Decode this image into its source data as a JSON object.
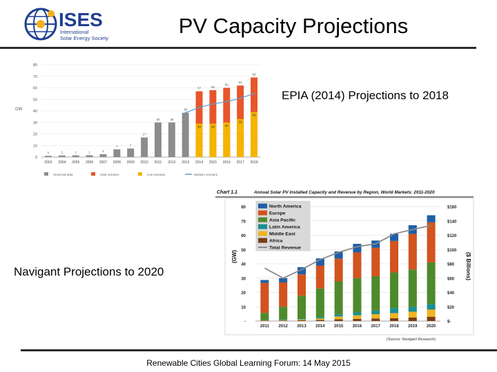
{
  "header": {
    "title": "PV Capacity Projections",
    "logo": {
      "acronym": "ISES",
      "name_lines": [
        "International",
        "Solar Energy Society"
      ]
    }
  },
  "labels": {
    "epia": "EPIA (2014) Projections to 2018",
    "navigant": "Navigant Projections to 2020"
  },
  "footer": "Renewable Cities Global Learning Forum:  14 May 2015",
  "colors": {
    "historical": "#8c8c8c",
    "high": "#e8552a",
    "low": "#f4b400",
    "medium": "#5b9bd5",
    "north_america": "#1f5fa8",
    "europe": "#d2541f",
    "asia_pacific": "#4e8a2c",
    "latin_america": "#1a8f8f",
    "middle_east": "#f0b323",
    "africa": "#7a3d14",
    "revenue": "#8a8a8a"
  },
  "chart_data": [
    {
      "type": "bar",
      "title": "",
      "ylabel": "GW",
      "ylim": [
        0,
        80
      ],
      "yticks": [
        0,
        10,
        20,
        30,
        40,
        50,
        60,
        70,
        80
      ],
      "categories": [
        "2003",
        "2004",
        "2005",
        "2006",
        "2007",
        "2008",
        "2009",
        "2010",
        "2011",
        "2012",
        "2013",
        "2014",
        "2015",
        "2016",
        "2017",
        "2018"
      ],
      "series": [
        {
          "name": "Historical data",
          "values": [
            1.1,
            1.4,
            1.5,
            1.6,
            2.5,
            6.7,
            7.4,
            17,
            30,
            30,
            38.4,
            null,
            null,
            null,
            null,
            null
          ]
        },
        {
          "name": "High scenario",
          "values": [
            null,
            null,
            null,
            null,
            null,
            null,
            null,
            null,
            null,
            null,
            null,
            57,
            58,
            60,
            62,
            69
          ]
        },
        {
          "name": "Low scenario",
          "values": [
            null,
            null,
            null,
            null,
            null,
            null,
            null,
            null,
            null,
            null,
            null,
            29,
            29,
            30,
            33,
            39
          ]
        },
        {
          "name": "Medium scenario",
          "values": [
            null,
            null,
            null,
            null,
            null,
            null,
            null,
            null,
            null,
            null,
            38.4,
            43,
            46,
            48,
            51,
            55
          ]
        }
      ],
      "data_labels": [
        "1",
        "1",
        "1",
        "1",
        "2",
        "7",
        "7",
        "17",
        "30",
        "30",
        "38",
        "57",
        "58",
        "60",
        "62",
        "69"
      ],
      "low_labels": [
        "29",
        "29",
        "30",
        "33",
        "39"
      ],
      "legend": [
        "Historical data",
        "High scenario",
        "Low scenario",
        "Medium scenario"
      ]
    },
    {
      "type": "bar",
      "title": "Annual Solar PV Installed Capacity and Revenue by Region, World Markets: 2011-2020",
      "chart_label": "Chart 1.1",
      "ylabel": "(GW)",
      "y2label": "($ Billions)",
      "ylim": [
        0,
        80
      ],
      "yticks": [
        "-",
        "10",
        "20",
        "30",
        "40",
        "50",
        "60",
        "70",
        "80"
      ],
      "y2ticks": [
        "$-",
        "$20",
        "$40",
        "$60",
        "$80",
        "$100",
        "$120",
        "$140",
        "$160"
      ],
      "categories": [
        "2011",
        "2012",
        "2013",
        "2014",
        "2015",
        "2016",
        "2017",
        "2018",
        "2019",
        "2020"
      ],
      "series": [
        {
          "name": "Africa",
          "values": [
            0.3,
            0.3,
            0.5,
            0.8,
            1.2,
            1.5,
            1.8,
            2,
            2.5,
            3
          ]
        },
        {
          "name": "Middle East",
          "values": [
            0.2,
            0.3,
            0.6,
            1,
            2,
            2.5,
            3,
            3.5,
            4,
            5
          ]
        },
        {
          "name": "Latin America",
          "values": [
            0.2,
            0.4,
            0.6,
            1,
            1.5,
            2,
            2.5,
            3.5,
            3.5,
            4
          ]
        },
        {
          "name": "Asia Pacific",
          "values": [
            5,
            9,
            16,
            20,
            23,
            24,
            24,
            25,
            26,
            29
          ]
        },
        {
          "name": "Europe",
          "values": [
            21,
            17,
            15,
            16,
            16,
            18,
            20,
            22,
            25,
            28
          ]
        },
        {
          "name": "North America",
          "values": [
            2,
            3,
            5,
            5,
            5,
            6,
            5,
            5,
            6,
            5
          ]
        },
        {
          "name": "Total Revenue",
          "type": "line",
          "axis": "right",
          "values": [
            74,
            60,
            72,
            86,
            96,
            104,
            108,
            122,
            128,
            134
          ]
        }
      ],
      "legend": [
        "North America",
        "Europe",
        "Asia Pacific",
        "Latin America",
        "Middle East",
        "Africa",
        "Total Revenue"
      ],
      "source": "(Source: Navigant Research)"
    }
  ]
}
